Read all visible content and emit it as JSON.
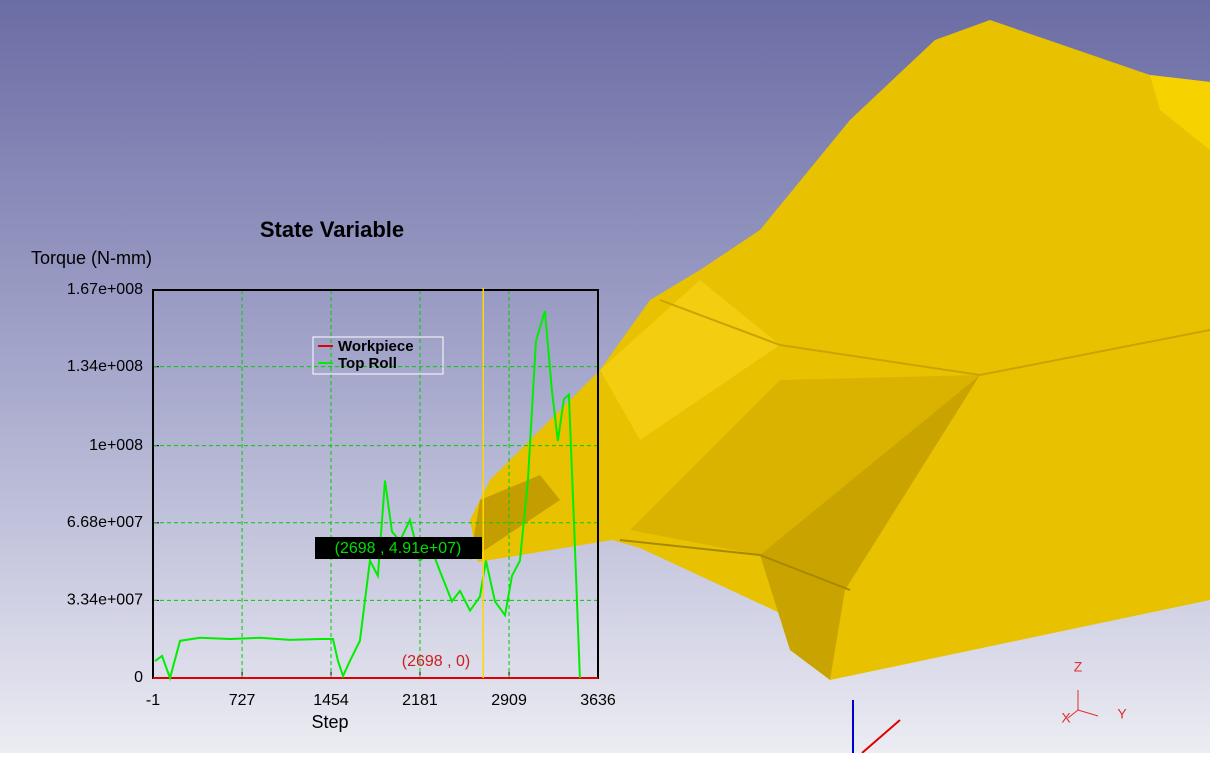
{
  "chart_data": {
    "type": "line",
    "title": "State Variable",
    "y_label": "Torque (N-mm)",
    "x_label": "Step",
    "xlim": [
      -1,
      3636
    ],
    "xticks": [
      -1,
      727,
      1454,
      2181,
      2909,
      3636
    ],
    "ylim": [
      0,
      167000000
    ],
    "yticks": [
      0,
      {
        "value": 33400000,
        "label": "3.34e+007"
      },
      {
        "value": 66800000,
        "label": "6.68e+007"
      },
      {
        "value": 100000000,
        "label": "1e+008"
      },
      {
        "value": 134000000,
        "label": "1.34e+008"
      },
      {
        "value": 167000000,
        "label": "1.67e+008"
      }
    ],
    "grid": true,
    "series": [
      {
        "name": "Workpiece",
        "color": "#e00000",
        "x": [
          -1,
          3636
        ],
        "values": [
          0,
          0
        ]
      },
      {
        "name": "Top Roll",
        "color": "#00ee00",
        "x": [
          15,
          73,
          138,
          220,
          383,
          628,
          873,
          1118,
          1363,
          1470,
          1511,
          1552,
          1608,
          1690,
          1772,
          1837,
          1895,
          1952,
          2017,
          2099,
          2180,
          2279,
          2344,
          2442,
          2508,
          2590,
          2671,
          2720,
          2794,
          2876,
          2933,
          2998,
          3063,
          3129,
          3202,
          3259,
          3308,
          3357,
          3398,
          3439,
          3488
        ],
        "values": [
          7300000,
          9500000,
          0,
          16000000,
          17300000,
          16800000,
          17300000,
          16400000,
          16800000,
          16800000,
          7300000,
          860000,
          7300000,
          16000000,
          50500000,
          44000000,
          85000000,
          63000000,
          59000000,
          68000000,
          50500000,
          55000000,
          46000000,
          33000000,
          37500000,
          29000000,
          35000000,
          50500000,
          33000000,
          27000000,
          44000000,
          50500000,
          85000000,
          145000000,
          158000000,
          124000000,
          102000000,
          120000000,
          122000000,
          68000000,
          0
        ]
      }
    ],
    "cursor": {
      "x": 2698,
      "labels": [
        "(2698 , 4.91e+07)",
        "(2698 , 0)"
      ]
    }
  },
  "view_axes": [
    "Z",
    "X",
    "Y"
  ]
}
